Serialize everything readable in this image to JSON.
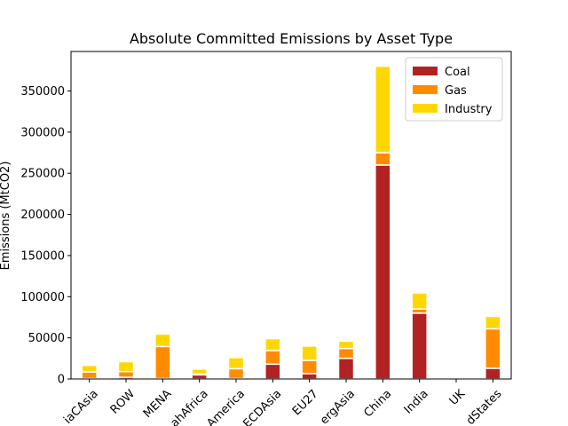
{
  "chart_data": {
    "type": "bar",
    "stacked": true,
    "title": "Absolute Committed Emissions by Asset Type",
    "xlabel": "",
    "ylabel": "Emissions (MtCO2)",
    "ylim": [
      0,
      398000
    ],
    "yticks": [
      0,
      50000,
      100000,
      150000,
      200000,
      250000,
      300000,
      350000
    ],
    "categories": [
      "AsiaCAsia",
      "ROW",
      "MENA",
      "SubSahAfrica",
      "LatAmerica",
      "OECDAsia",
      "EU27",
      "EmergAsia",
      "China",
      "India",
      "UK",
      "UnitedStates"
    ],
    "category_labels": [
      "iaCAsia",
      "ROW",
      "MENA",
      "ahAfrica",
      "America",
      "ECDAsia",
      "EU27",
      "ergAsia",
      "China",
      "India",
      "UK",
      "dStates"
    ],
    "series": [
      {
        "name": "Coal",
        "color": "#b22222",
        "values": [
          500,
          2000,
          500,
          5000,
          500,
          18000,
          6500,
          25000,
          260000,
          80000,
          0,
          13000
        ]
      },
      {
        "name": "Gas",
        "color": "#ff8c00",
        "values": [
          8000,
          7000,
          39000,
          1000,
          12000,
          16500,
          16000,
          12000,
          15000,
          5000,
          0,
          48000
        ]
      },
      {
        "name": "Industry",
        "color": "#ffd700",
        "values": [
          8000,
          12000,
          15000,
          6000,
          13500,
          14500,
          17500,
          9000,
          105000,
          19500,
          0,
          15000
        ]
      }
    ],
    "legend": {
      "position": "top-right"
    },
    "grid": false
  }
}
